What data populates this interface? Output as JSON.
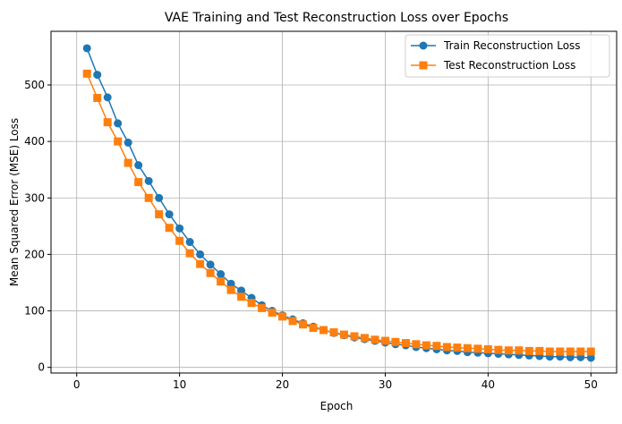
{
  "chart_data": {
    "type": "line",
    "title": "VAE Training and Test Reconstruction Loss over Epochs",
    "xlabel": "Epoch",
    "ylabel": "Mean Squared Error (MSE) Loss",
    "xlim": [
      -2.5,
      52.5
    ],
    "ylim": [
      -10,
      595
    ],
    "xticks": [
      0,
      10,
      20,
      30,
      40,
      50
    ],
    "yticks": [
      0,
      100,
      200,
      300,
      400,
      500
    ],
    "grid": true,
    "legend": "top-right",
    "x": [
      1,
      2,
      3,
      4,
      5,
      6,
      7,
      8,
      9,
      10,
      11,
      12,
      13,
      14,
      15,
      16,
      17,
      18,
      19,
      20,
      21,
      22,
      23,
      24,
      25,
      26,
      27,
      28,
      29,
      30,
      31,
      32,
      33,
      34,
      35,
      36,
      37,
      38,
      39,
      40,
      41,
      42,
      43,
      44,
      45,
      46,
      47,
      48,
      49,
      50
    ],
    "series": [
      {
        "name": "Train Reconstruction Loss",
        "color": "#1f77b4",
        "marker": "circle",
        "values": [
          565,
          518,
          478,
          432,
          398,
          358,
          330,
          300,
          271,
          246,
          222,
          200,
          182,
          165,
          148,
          136,
          123,
          110,
          100,
          92,
          85,
          78,
          72,
          66,
          61,
          57,
          53,
          50,
          47,
          44,
          41,
          39,
          36,
          34,
          32,
          30,
          29,
          27,
          26,
          25,
          24,
          23,
          22,
          21,
          20,
          19,
          19,
          18,
          18,
          17
        ]
      },
      {
        "name": "Test Reconstruction Loss",
        "color": "#ff7f0e",
        "marker": "square",
        "values": [
          520,
          477,
          434,
          400,
          362,
          328,
          300,
          271,
          247,
          224,
          202,
          183,
          167,
          152,
          137,
          125,
          114,
          105,
          97,
          90,
          82,
          76,
          70,
          66,
          62,
          58,
          55,
          52,
          49,
          47,
          45,
          43,
          41,
          39,
          38,
          36,
          35,
          34,
          33,
          32,
          31,
          30,
          30,
          29,
          29,
          28,
          28,
          28,
          28,
          28
        ]
      }
    ]
  }
}
